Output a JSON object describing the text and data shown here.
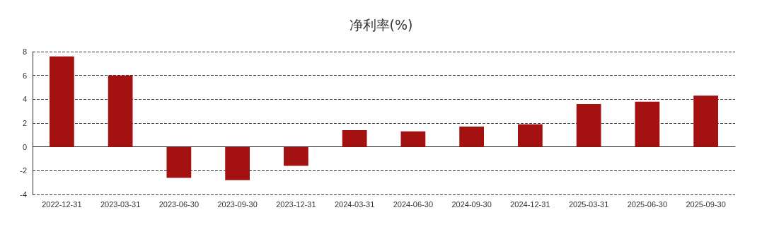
{
  "chart_data": {
    "type": "bar",
    "title": "净利率(%)",
    "categories": [
      "2022-12-31",
      "2023-03-31",
      "2023-06-30",
      "2023-09-30",
      "2023-12-31",
      "2024-03-31",
      "2024-06-30",
      "2024-09-30",
      "2024-12-31",
      "2025-03-31",
      "2025-06-30",
      "2025-09-30"
    ],
    "values": [
      7.6,
      6.0,
      -2.6,
      -2.8,
      -1.6,
      1.4,
      1.3,
      1.7,
      1.9,
      3.6,
      3.8,
      4.3
    ],
    "color": "#a31111",
    "ylim": [
      -4,
      8
    ],
    "yticks": [
      -4,
      -2,
      0,
      2,
      4,
      6,
      8
    ],
    "grid": "y"
  }
}
